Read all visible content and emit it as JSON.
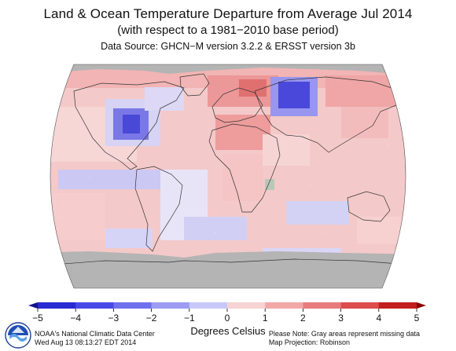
{
  "header": {
    "title": "Land & Ocean Temperature Departure from Average Jul 2014",
    "subtitle": "(with respect to a 1981−2010 base period)",
    "source": "Data Source: GHCN−M version 3.2.2 & ERSST version 3b"
  },
  "colorbar": {
    "ticks": [
      "−5",
      "−4",
      "−3",
      "−2",
      "−1",
      "0",
      "1",
      "2",
      "3",
      "4",
      "5"
    ],
    "unit_label": "Degrees Celsius",
    "colors": [
      "#12128c",
      "#2a2ad2",
      "#4848e6",
      "#7070ee",
      "#9c9cf4",
      "#c8c8f8",
      "#f7d3d3",
      "#f2a8a8",
      "#e87b7b",
      "#dc4c4c",
      "#c21e1e",
      "#8c0000"
    ]
  },
  "footer": {
    "org_line": "NOAA's National Climatic Data Center",
    "date_line": "Wed Aug 13 08:13:27 EDT 2014",
    "note_line": "Please Note: Gray areas represent missing data",
    "projection_line": "Map Projection: Robinson"
  },
  "map": {
    "missing_color": "#b4b4b4",
    "ocean_base_color": "#f4c9c9",
    "outline_color": "#333333",
    "logo_icon": "noaa-logo-icon"
  }
}
